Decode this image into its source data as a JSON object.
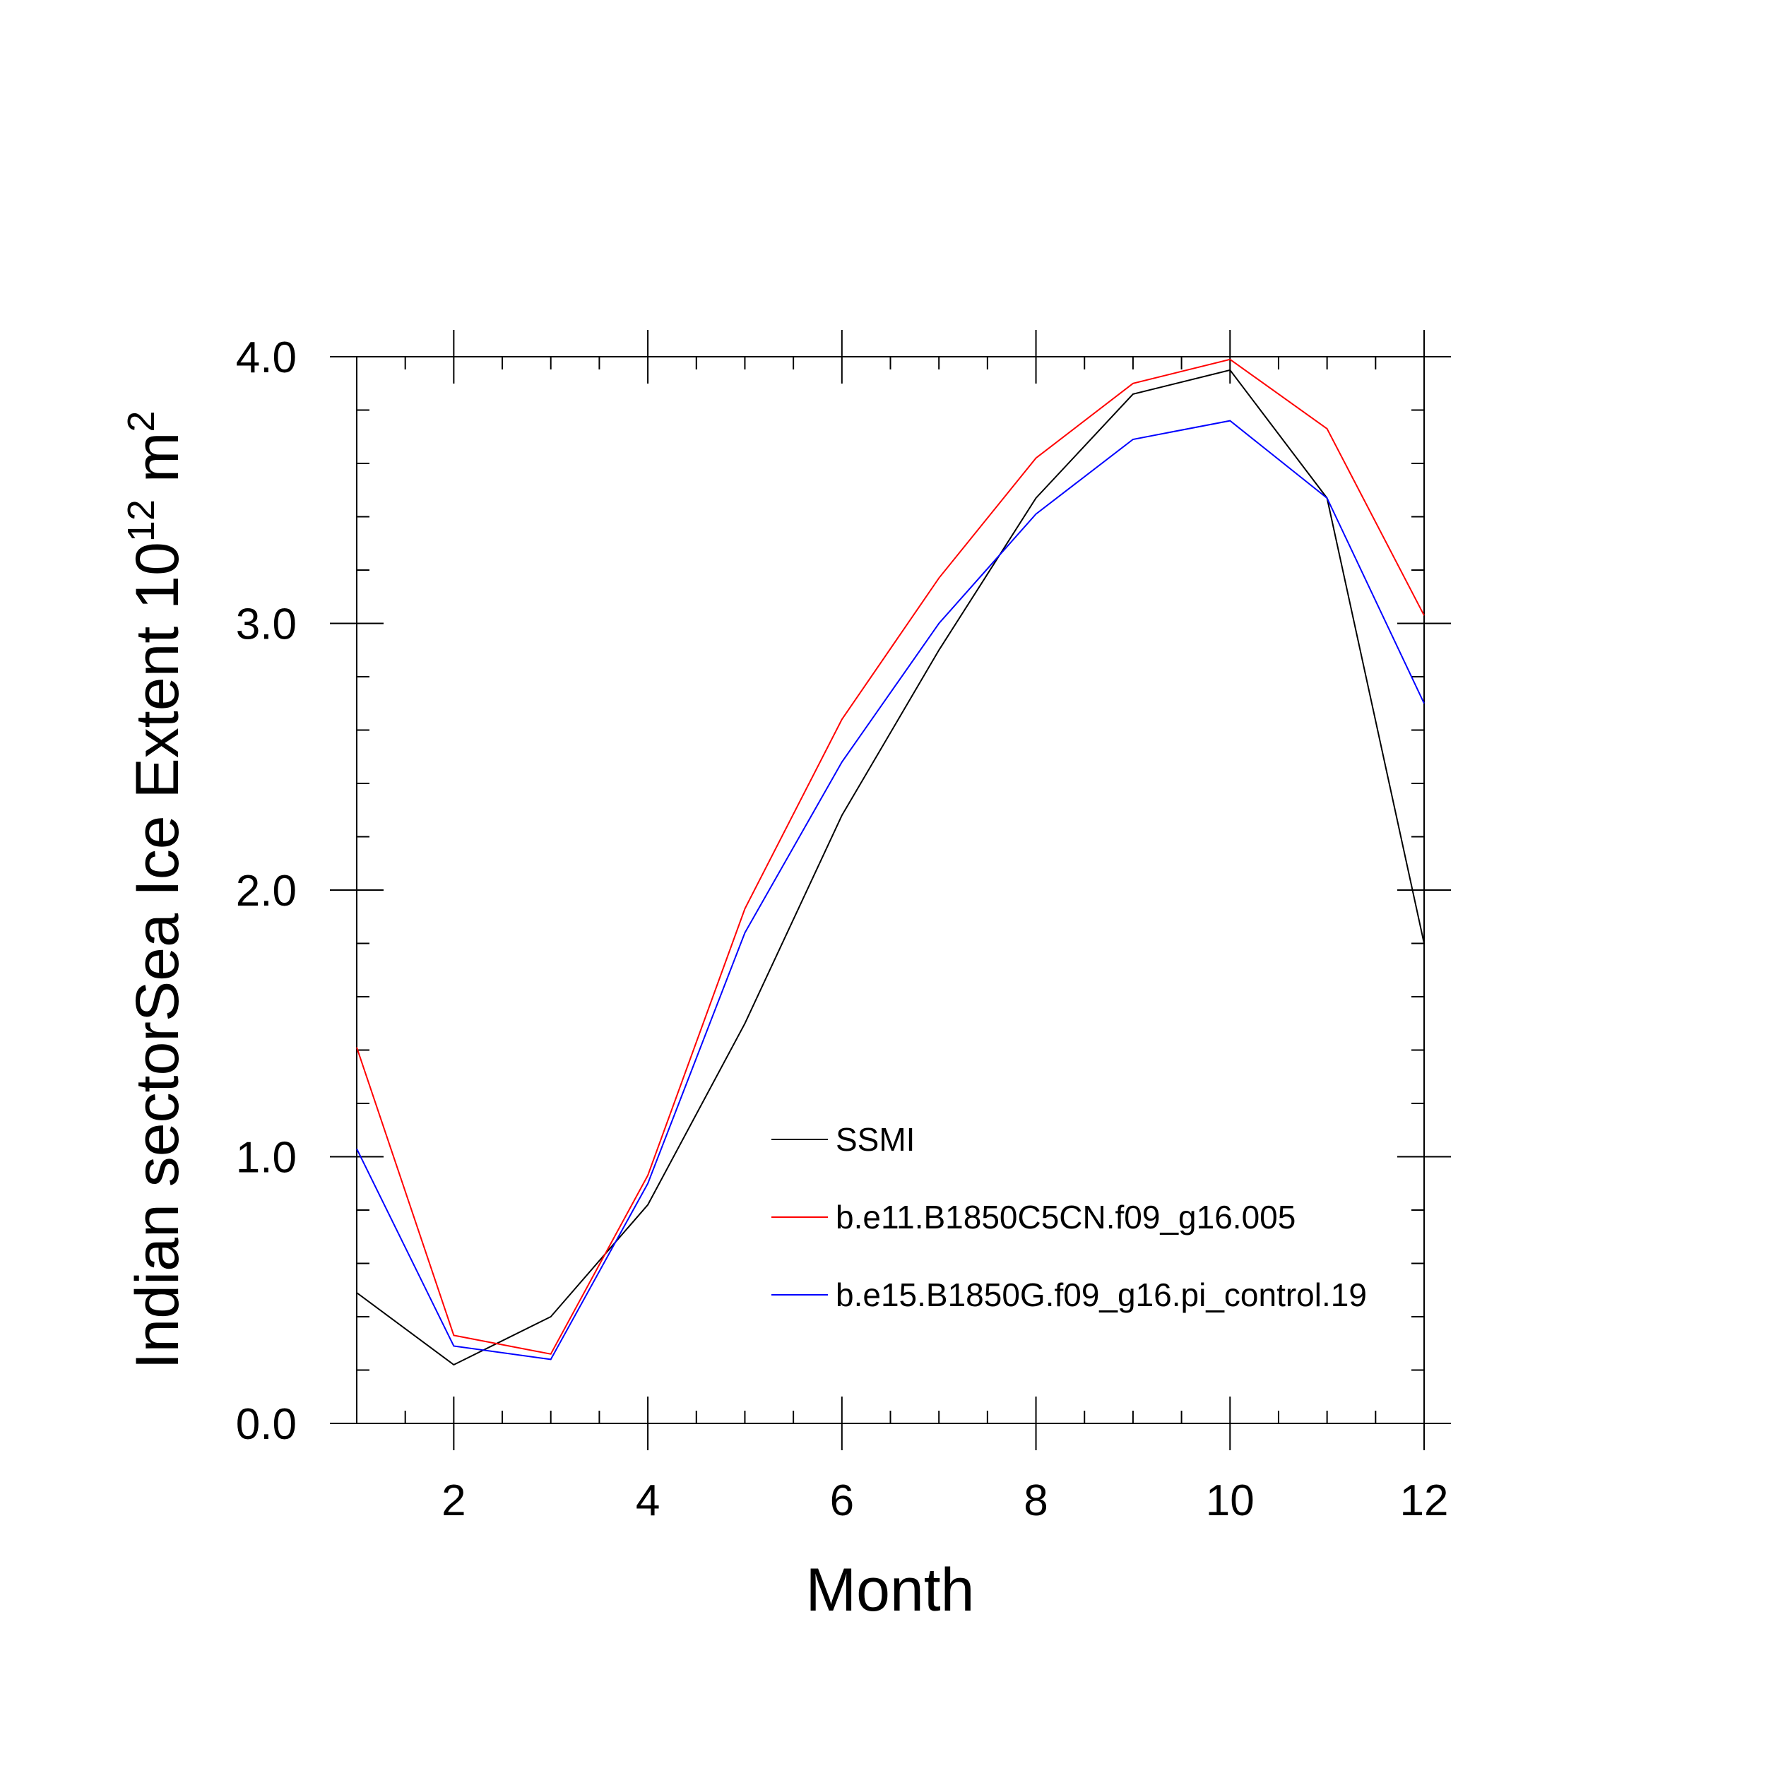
{
  "chart_data": {
    "type": "line",
    "title": "",
    "xlabel": "Month",
    "ylabel": {
      "text": "Indian sectorSea Ice Extent 10",
      "exponent": "12",
      "unit": " m",
      "unit_exponent": "2"
    },
    "x": [
      1,
      2,
      3,
      4,
      5,
      6,
      7,
      8,
      9,
      10,
      11,
      12
    ],
    "xlim": [
      1,
      12
    ],
    "ylim": [
      0,
      4
    ],
    "x_ticks": [
      2,
      4,
      6,
      8,
      10,
      12
    ],
    "x_tick_labels": [
      "2",
      "4",
      "6",
      "8",
      "10",
      "12"
    ],
    "y_ticks": [
      0,
      1,
      2,
      3,
      4
    ],
    "y_tick_labels": [
      "0.0",
      "1.0",
      "2.0",
      "3.0",
      "4.0"
    ],
    "grid": false,
    "legend_position": "lower-right",
    "series": [
      {
        "name": "SSMI",
        "color": "#000000",
        "values": [
          0.49,
          0.22,
          0.4,
          0.82,
          1.5,
          2.28,
          2.9,
          3.47,
          3.86,
          3.95,
          3.47,
          1.8
        ]
      },
      {
        "name": "b.e11.B1850C5CN.f09_g16.005",
        "color": "#ff0000",
        "values": [
          1.41,
          0.33,
          0.26,
          0.93,
          1.93,
          2.64,
          3.17,
          3.62,
          3.9,
          3.99,
          3.73,
          3.03
        ]
      },
      {
        "name": "b.e15.B1850G.f09_g16.pi_control.19",
        "color": "#0000ff",
        "values": [
          1.03,
          0.29,
          0.24,
          0.9,
          1.84,
          2.48,
          3.0,
          3.41,
          3.69,
          3.76,
          3.47,
          2.7
        ]
      }
    ]
  }
}
